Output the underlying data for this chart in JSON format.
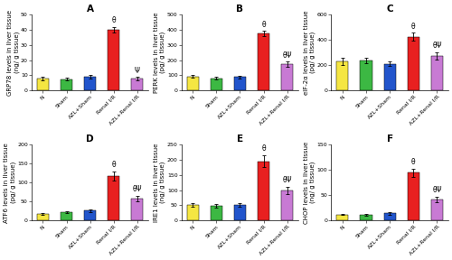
{
  "panels": [
    {
      "label": "A",
      "ylabel": "GRP78 levels in liver tissue\n(ng/ g tissue)",
      "ylim": [
        0,
        50
      ],
      "yticks": [
        0,
        10,
        20,
        30,
        40,
        50
      ],
      "values": [
        8,
        7.5,
        9,
        40,
        8
      ],
      "errors": [
        1.0,
        0.8,
        1.2,
        2.0,
        1.0
      ],
      "annotations": [
        "",
        "",
        "",
        "θ",
        "Ψ"
      ]
    },
    {
      "label": "B",
      "ylabel": "PERK levels in liver tissue\n(pg/ g tissue)",
      "ylim": [
        0,
        500
      ],
      "yticks": [
        0,
        100,
        200,
        300,
        400,
        500
      ],
      "values": [
        92,
        82,
        90,
        375,
        175
      ],
      "errors": [
        9,
        7,
        8,
        18,
        16
      ],
      "annotations": [
        "",
        "",
        "",
        "θ",
        "θΨ"
      ]
    },
    {
      "label": "C",
      "ylabel": "eIF-2α levels in liver tissue\n(pg/ g tissue)",
      "ylim": [
        0,
        600
      ],
      "yticks": [
        0,
        200,
        400,
        600
      ],
      "values": [
        230,
        235,
        210,
        425,
        275
      ],
      "errors": [
        28,
        22,
        18,
        32,
        30
      ],
      "annotations": [
        "",
        "",
        "",
        "θ",
        "θΨ"
      ]
    },
    {
      "label": "D",
      "ylabel": "ATF6 levels in liver tissue\n(pg/ g tissue)",
      "ylim": [
        0,
        200
      ],
      "yticks": [
        0,
        50,
        100,
        150,
        200
      ],
      "values": [
        18,
        22,
        26,
        118,
        58
      ],
      "errors": [
        2.5,
        3,
        3,
        12,
        7
      ],
      "annotations": [
        "",
        "",
        "",
        "θ",
        "θΨ"
      ]
    },
    {
      "label": "E",
      "ylabel": "IRE1 levels in liver tissue\n(ng/ g tissue)",
      "ylim": [
        0,
        250
      ],
      "yticks": [
        0,
        50,
        100,
        150,
        200,
        250
      ],
      "values": [
        52,
        48,
        52,
        195,
        100
      ],
      "errors": [
        6,
        5,
        6,
        20,
        12
      ],
      "annotations": [
        "",
        "",
        "",
        "θ",
        "θΨ"
      ]
    },
    {
      "label": "F",
      "ylabel": "CHOP levels in liver tissue\n(ng/ g tissue)",
      "ylim": [
        0,
        150
      ],
      "yticks": [
        0,
        50,
        100,
        150
      ],
      "values": [
        12,
        11,
        14,
        95,
        42
      ],
      "errors": [
        1.5,
        1.2,
        2,
        8,
        5
      ],
      "annotations": [
        "",
        "",
        "",
        "θ",
        "θΨ"
      ]
    }
  ],
  "categories": [
    "N",
    "Sham",
    "AZL+Sham",
    "Renal I/R",
    "AZL+Renal I/R"
  ],
  "bar_colors": [
    "#f5e642",
    "#3cb843",
    "#2255cc",
    "#e82020",
    "#c87ad4"
  ],
  "background_color": "#ffffff",
  "bar_width": 0.5,
  "label_fontsize": 5.0,
  "tick_fontsize": 4.5,
  "title_fontsize": 7.5,
  "annot_fontsize": 5.5
}
